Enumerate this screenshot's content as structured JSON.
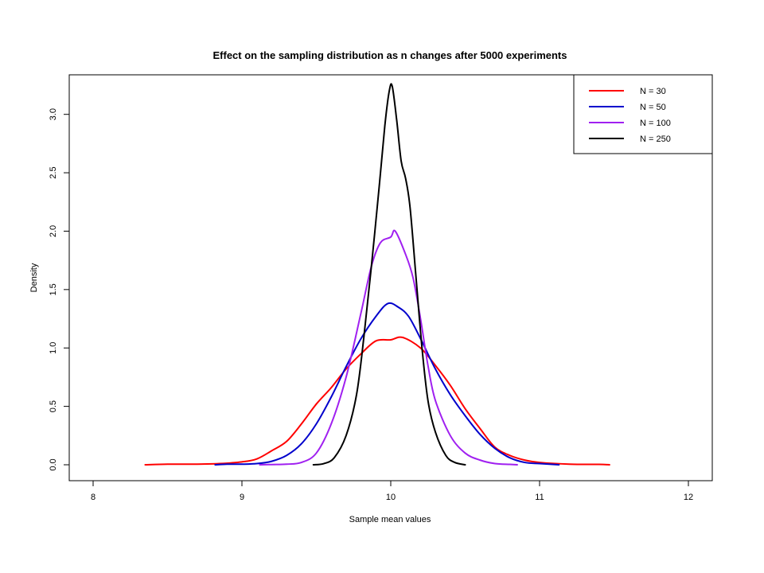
{
  "chart_data": {
    "type": "line",
    "title": "Effect on the sampling distribution as n changes after 5000 experiments",
    "xlabel": "Sample mean values",
    "ylabel": "Density",
    "xlim": [
      8,
      12
    ],
    "ylim": [
      0,
      3.25
    ],
    "x_ticks": [
      "8",
      "9",
      "10",
      "11",
      "12"
    ],
    "y_ticks": [
      "0.0",
      "0.5",
      "1.0",
      "1.5",
      "2.0",
      "2.5",
      "3.0"
    ],
    "grid": false,
    "legend_position": "top-right",
    "series": [
      {
        "name": "N = 30",
        "color": "#ff0000",
        "points": [
          [
            8.35,
            0.0
          ],
          [
            8.5,
            0.005
          ],
          [
            8.7,
            0.005
          ],
          [
            8.85,
            0.01
          ],
          [
            9.0,
            0.025
          ],
          [
            9.1,
            0.05
          ],
          [
            9.2,
            0.12
          ],
          [
            9.3,
            0.2
          ],
          [
            9.4,
            0.35
          ],
          [
            9.5,
            0.52
          ],
          [
            9.6,
            0.66
          ],
          [
            9.7,
            0.82
          ],
          [
            9.8,
            0.95
          ],
          [
            9.9,
            1.06
          ],
          [
            10.0,
            1.07
          ],
          [
            10.08,
            1.09
          ],
          [
            10.2,
            1.0
          ],
          [
            10.3,
            0.85
          ],
          [
            10.4,
            0.68
          ],
          [
            10.5,
            0.48
          ],
          [
            10.6,
            0.31
          ],
          [
            10.7,
            0.15
          ],
          [
            10.8,
            0.08
          ],
          [
            10.9,
            0.04
          ],
          [
            11.0,
            0.02
          ],
          [
            11.2,
            0.005
          ],
          [
            11.4,
            0.003
          ],
          [
            11.47,
            0.0
          ]
        ]
      },
      {
        "name": "N = 50",
        "color": "#0000cc",
        "points": [
          [
            8.82,
            0.0
          ],
          [
            8.9,
            0.005
          ],
          [
            9.0,
            0.005
          ],
          [
            9.1,
            0.01
          ],
          [
            9.2,
            0.03
          ],
          [
            9.3,
            0.08
          ],
          [
            9.4,
            0.18
          ],
          [
            9.5,
            0.35
          ],
          [
            9.6,
            0.58
          ],
          [
            9.7,
            0.84
          ],
          [
            9.8,
            1.08
          ],
          [
            9.9,
            1.27
          ],
          [
            9.98,
            1.38
          ],
          [
            10.05,
            1.35
          ],
          [
            10.12,
            1.27
          ],
          [
            10.2,
            1.08
          ],
          [
            10.3,
            0.82
          ],
          [
            10.4,
            0.6
          ],
          [
            10.5,
            0.42
          ],
          [
            10.6,
            0.26
          ],
          [
            10.7,
            0.14
          ],
          [
            10.8,
            0.06
          ],
          [
            10.9,
            0.02
          ],
          [
            11.0,
            0.01
          ],
          [
            11.13,
            0.0
          ]
        ]
      },
      {
        "name": "N = 100",
        "color": "#a020f0",
        "points": [
          [
            9.12,
            0.0
          ],
          [
            9.2,
            0.002
          ],
          [
            9.3,
            0.005
          ],
          [
            9.4,
            0.02
          ],
          [
            9.5,
            0.1
          ],
          [
            9.6,
            0.35
          ],
          [
            9.7,
            0.75
          ],
          [
            9.8,
            1.3
          ],
          [
            9.87,
            1.7
          ],
          [
            9.93,
            1.9
          ],
          [
            10.0,
            1.95
          ],
          [
            10.03,
            2.0
          ],
          [
            10.1,
            1.8
          ],
          [
            10.15,
            1.6
          ],
          [
            10.2,
            1.25
          ],
          [
            10.25,
            0.85
          ],
          [
            10.3,
            0.55
          ],
          [
            10.4,
            0.25
          ],
          [
            10.5,
            0.1
          ],
          [
            10.6,
            0.04
          ],
          [
            10.7,
            0.01
          ],
          [
            10.8,
            0.003
          ],
          [
            10.85,
            0.0
          ]
        ]
      },
      {
        "name": "N = 250",
        "color": "#000000",
        "points": [
          [
            9.48,
            0.0
          ],
          [
            9.55,
            0.01
          ],
          [
            9.62,
            0.06
          ],
          [
            9.7,
            0.25
          ],
          [
            9.77,
            0.6
          ],
          [
            9.82,
            1.1
          ],
          [
            9.87,
            1.7
          ],
          [
            9.92,
            2.35
          ],
          [
            9.96,
            2.9
          ],
          [
            9.99,
            3.2
          ],
          [
            10.01,
            3.24
          ],
          [
            10.04,
            2.95
          ],
          [
            10.07,
            2.6
          ],
          [
            10.1,
            2.45
          ],
          [
            10.13,
            2.2
          ],
          [
            10.17,
            1.6
          ],
          [
            10.21,
            1.0
          ],
          [
            10.25,
            0.55
          ],
          [
            10.3,
            0.28
          ],
          [
            10.37,
            0.08
          ],
          [
            10.43,
            0.02
          ],
          [
            10.5,
            0.0
          ]
        ]
      }
    ]
  }
}
